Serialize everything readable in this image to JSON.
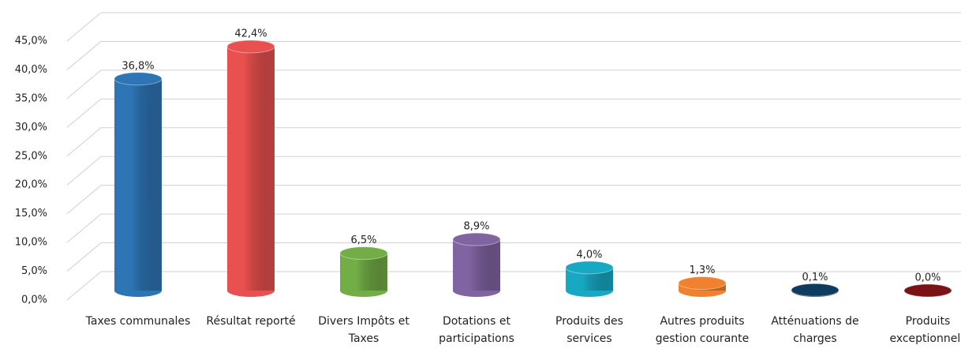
{
  "chart_data": {
    "type": "bar",
    "categories": [
      "Taxes communales",
      "Résultat reporté",
      "Divers Impôts et Taxes",
      "Dotations et participations",
      "Produits des services",
      "Autres produits gestion courante",
      "Atténuations de charges",
      "Produits exceptionnels"
    ],
    "values": [
      36.8,
      42.4,
      6.5,
      8.9,
      4.0,
      1.3,
      0.1,
      0.0
    ],
    "value_labels": [
      "36,8%",
      "42,4%",
      "6,5%",
      "8,9%",
      "4,0%",
      "1,3%",
      "0,1%",
      "0,0%"
    ],
    "colors": [
      "#2e75b6",
      "#e8514f",
      "#72ad45",
      "#8064a2",
      "#17a9c4",
      "#f0822f",
      "#0f3b5f",
      "#7a1216"
    ],
    "ylim": [
      0,
      45
    ],
    "yticks": [
      {
        "value": 0,
        "label": "0,0%"
      },
      {
        "value": 5,
        "label": "5,0%"
      },
      {
        "value": 10,
        "label": "10,0%"
      },
      {
        "value": 15,
        "label": "15,0%"
      },
      {
        "value": 20,
        "label": "20,0%"
      },
      {
        "value": 25,
        "label": "25,0%"
      },
      {
        "value": 30,
        "label": "30,0%"
      },
      {
        "value": 35,
        "label": "35,0%"
      },
      {
        "value": 40,
        "label": "40,0%"
      },
      {
        "value": 45,
        "label": "45,0%"
      }
    ],
    "grid": true
  }
}
